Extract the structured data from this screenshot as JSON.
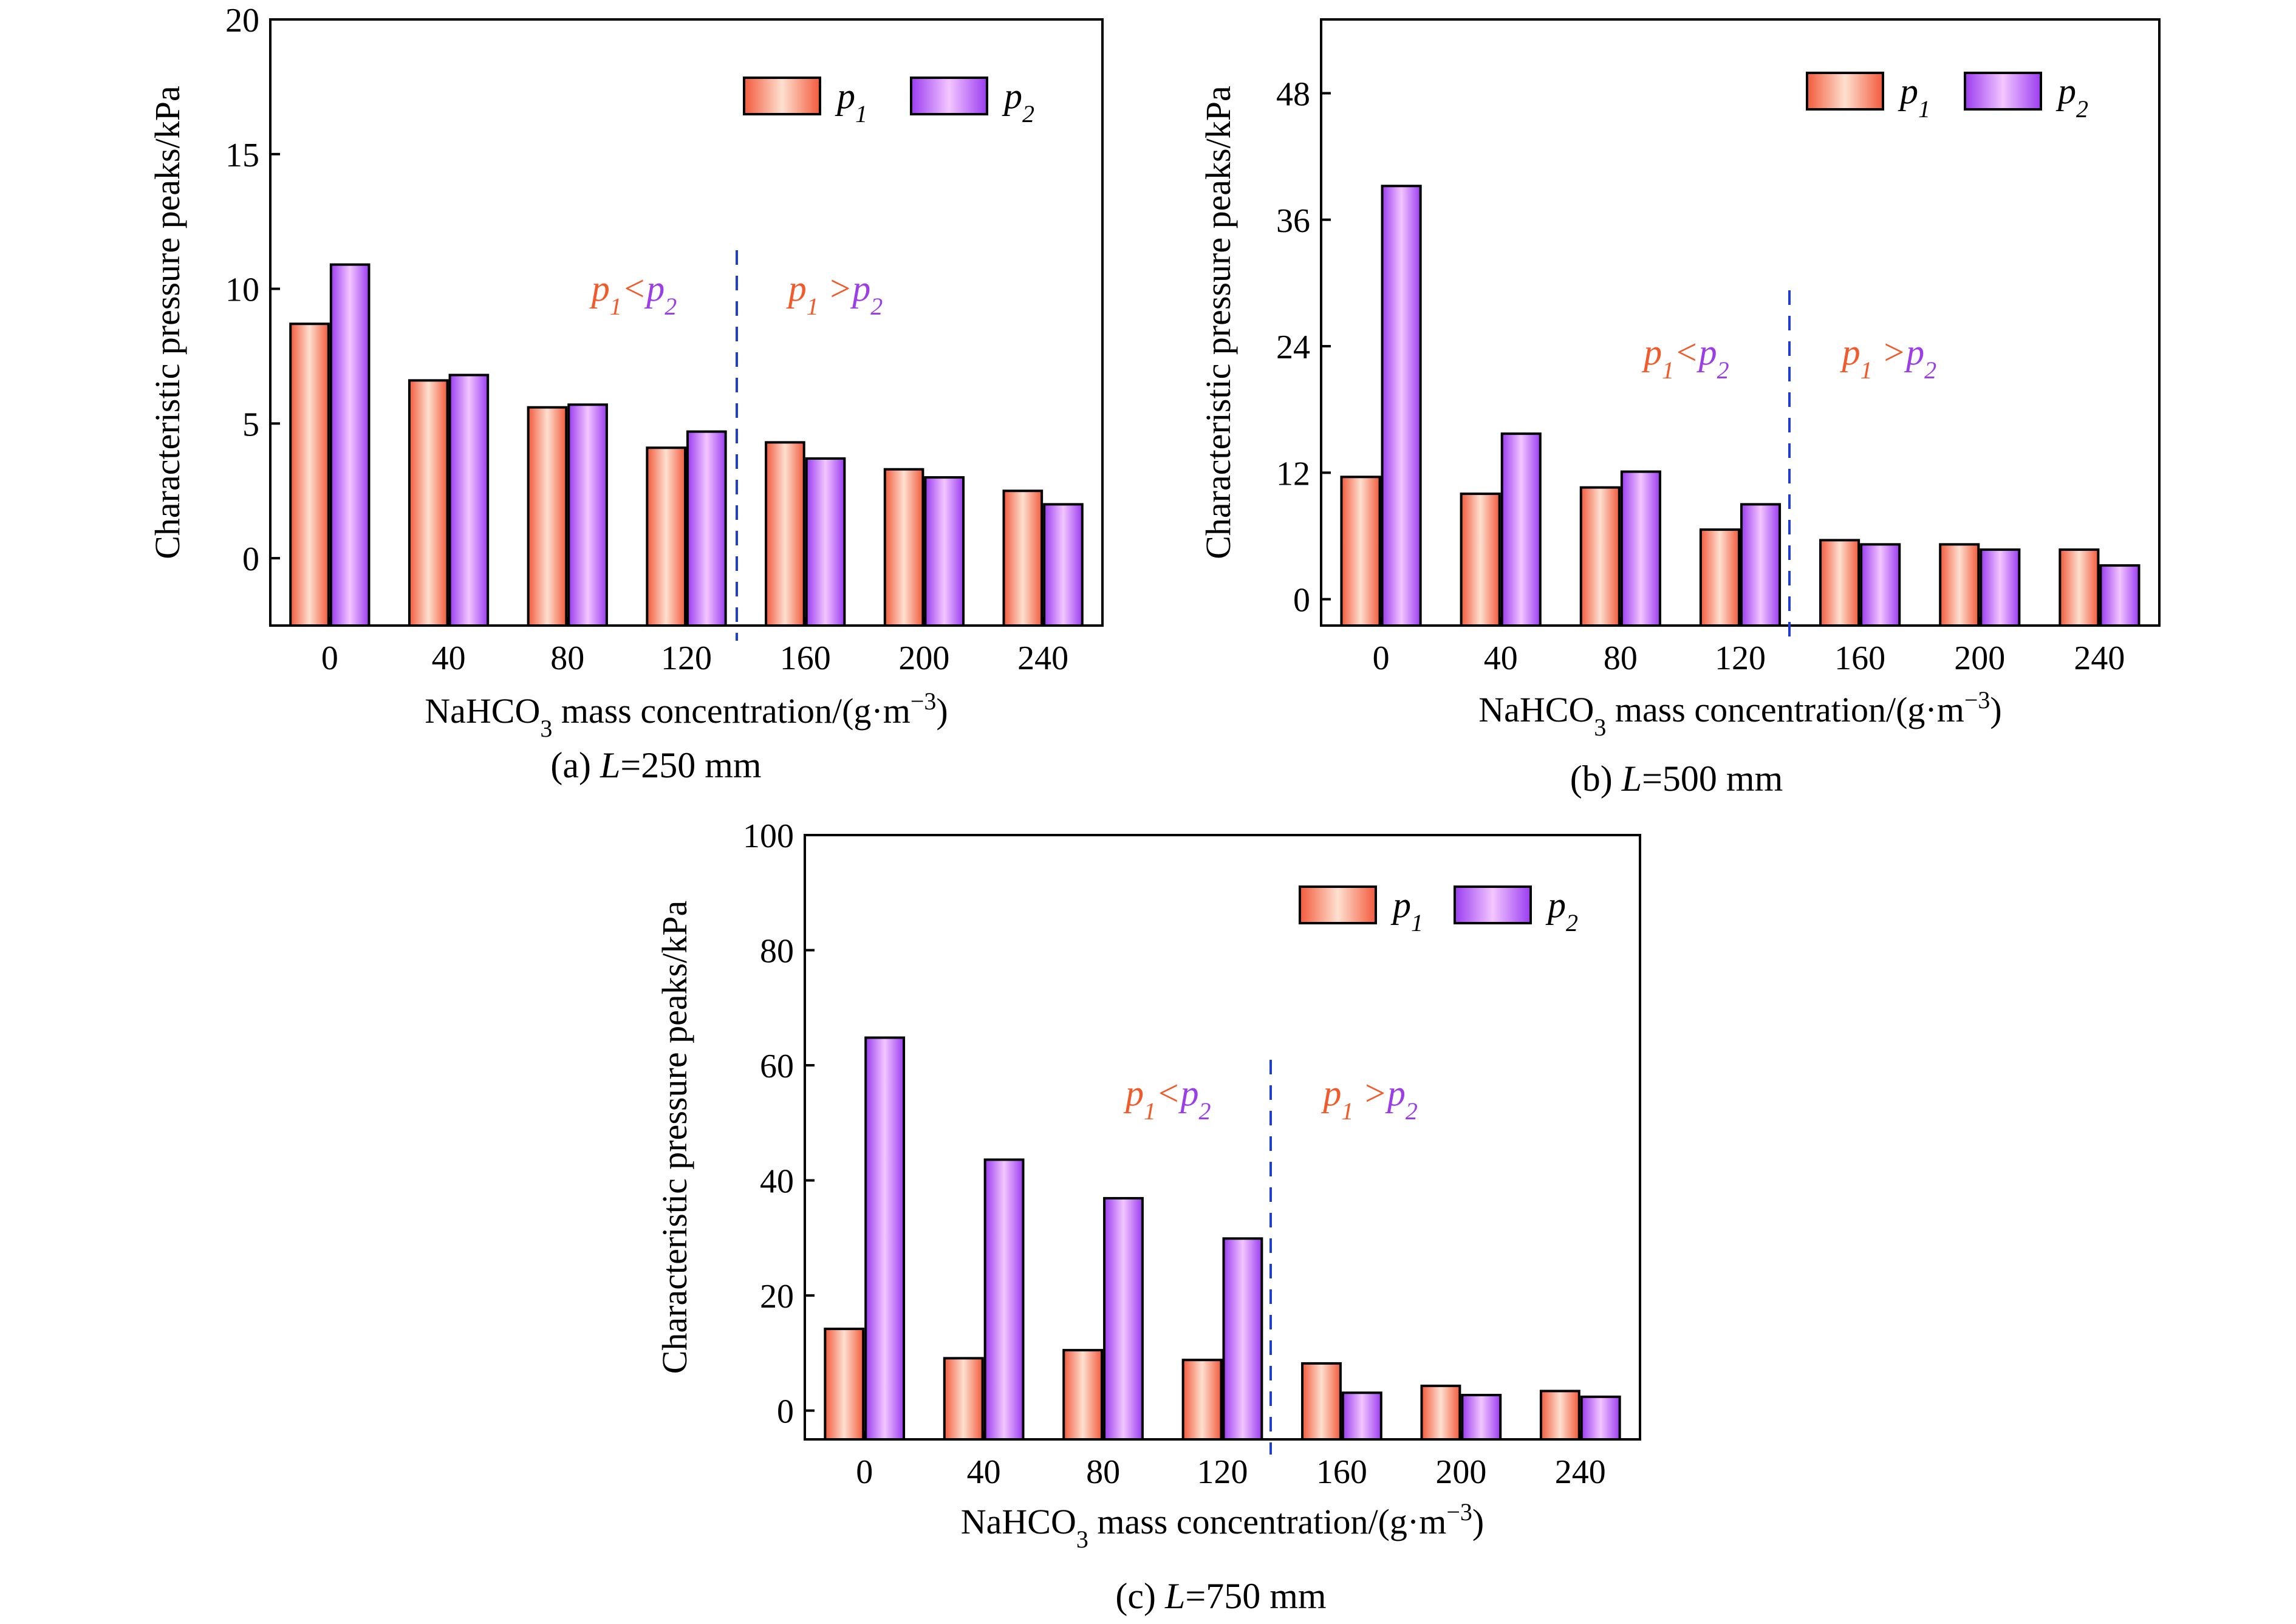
{
  "colors": {
    "p1_light": "#fde0d0",
    "p1_dark": "#f25a3c",
    "p2_light": "#f3c6ff",
    "p2_dark": "#9a3cf0",
    "p1_text": "#f15a2a",
    "p2_text": "#9b3ee8",
    "divider": "#1f3fd0"
  },
  "chart_data": [
    {
      "id": "a",
      "type": "bar",
      "caption": "(a) L=250 mm",
      "caption_parts": {
        "prefix": "(a) ",
        "var": "L",
        "suffix": "=250 mm"
      },
      "xlabel": "NaHCO3 mass concentration/(g·m−3)",
      "ylabel": "Characteristic pressure peaks/kPa",
      "categories": [
        "0",
        "40",
        "80",
        "120",
        "160",
        "200",
        "240"
      ],
      "series": [
        {
          "name": "p1",
          "values": [
            8.7,
            6.6,
            5.6,
            4.1,
            4.3,
            3.3,
            2.5
          ]
        },
        {
          "name": "p2",
          "values": [
            10.9,
            6.8,
            5.7,
            4.7,
            3.7,
            3.0,
            2.0
          ]
        }
      ],
      "yticks": [
        0,
        5,
        10,
        15,
        20
      ],
      "ylim": [
        -2.5,
        20
      ],
      "legend": "top-right",
      "annotations": {
        "left": "p1<p2",
        "right": "p1>p2"
      }
    },
    {
      "id": "b",
      "type": "bar",
      "caption": "(b) L=500 mm",
      "caption_parts": {
        "prefix": "(b) ",
        "var": "L",
        "suffix": "=500 mm"
      },
      "xlabel": "NaHCO3 mass concentration/(g·m−3)",
      "ylabel": "Characteristic pressure peaks/kPa",
      "categories": [
        "0",
        "40",
        "80",
        "120",
        "160",
        "200",
        "240"
      ],
      "series": [
        {
          "name": "p1",
          "values": [
            11.6,
            10.0,
            10.6,
            6.6,
            5.6,
            5.2,
            4.7
          ]
        },
        {
          "name": "p2",
          "values": [
            39.2,
            15.7,
            12.1,
            9.0,
            5.2,
            4.7,
            3.2
          ]
        }
      ],
      "yticks": [
        0,
        12,
        24,
        36,
        48
      ],
      "ylim": [
        -2.5,
        55
      ],
      "legend": "top-right",
      "annotations": {
        "left": "p1<p2",
        "right": "p1>p2"
      }
    },
    {
      "id": "c",
      "type": "bar",
      "caption": "(c) L=750 mm",
      "caption_parts": {
        "prefix": "(c) ",
        "var": "L",
        "suffix": "=750 mm"
      },
      "xlabel": "NaHCO3 mass concentration/(g·m−3)",
      "ylabel": "Characteristic pressure peaks/kPa",
      "categories": [
        "0",
        "40",
        "80",
        "120",
        "160",
        "200",
        "240"
      ],
      "series": [
        {
          "name": "p1",
          "values": [
            14.2,
            9.1,
            10.5,
            8.8,
            8.2,
            4.3,
            3.4
          ]
        },
        {
          "name": "p2",
          "values": [
            64.8,
            43.6,
            36.9,
            29.9,
            3.1,
            2.7,
            2.4
          ]
        }
      ],
      "yticks": [
        0,
        20,
        40,
        60,
        80,
        100
      ],
      "ylim": [
        -5,
        100
      ],
      "legend": "top-right",
      "annotations": {
        "left": "p1<p2",
        "right": "p1>p2"
      }
    }
  ]
}
